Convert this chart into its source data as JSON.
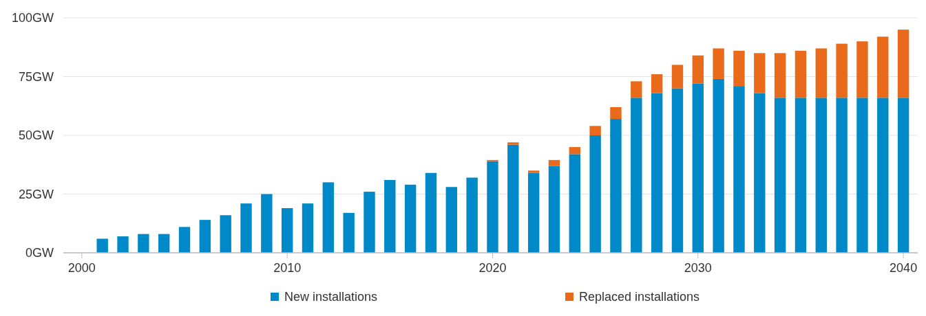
{
  "chart_data": {
    "type": "bar",
    "stacked": true,
    "x": [
      2001,
      2002,
      2003,
      2004,
      2005,
      2006,
      2007,
      2008,
      2009,
      2010,
      2011,
      2012,
      2013,
      2014,
      2015,
      2016,
      2017,
      2018,
      2019,
      2020,
      2021,
      2022,
      2023,
      2024,
      2025,
      2026,
      2027,
      2028,
      2029,
      2030,
      2031,
      2032,
      2033,
      2034,
      2035,
      2036,
      2037,
      2038,
      2039,
      2040
    ],
    "series": [
      {
        "name": "New installations",
        "color": "#0089c8",
        "values": [
          6,
          7,
          8,
          8,
          11,
          14,
          16,
          21,
          25,
          19,
          21,
          30,
          17,
          26,
          31,
          29,
          34,
          28,
          32,
          39,
          46,
          34,
          37,
          42,
          50,
          57,
          66,
          68,
          70,
          72,
          74,
          71,
          68,
          66,
          66,
          66,
          66,
          66,
          66,
          66
        ]
      },
      {
        "name": "Replaced installations",
        "color": "#e96a1a",
        "values": [
          0,
          0,
          0,
          0,
          0,
          0,
          0,
          0,
          0,
          0,
          0,
          0,
          0,
          0,
          0,
          0,
          0,
          0,
          0,
          0.5,
          1,
          1,
          2.5,
          3,
          4,
          5,
          7,
          8,
          10,
          12,
          13,
          15,
          17,
          19,
          20,
          21,
          23,
          24,
          26,
          29
        ]
      }
    ],
    "xlim": [
      1999.1,
      2040.7
    ],
    "xticks": [
      2000,
      2010,
      2020,
      2030,
      2040
    ],
    "ylim": [
      0,
      100
    ],
    "yticks": [
      {
        "value": 0,
        "label": "0GW"
      },
      {
        "value": 25,
        "label": "25GW"
      },
      {
        "value": 50,
        "label": "50GW"
      },
      {
        "value": 75,
        "label": "75GW"
      },
      {
        "value": 100,
        "label": "100GW"
      }
    ],
    "grid": "y",
    "legend": "bottom"
  }
}
